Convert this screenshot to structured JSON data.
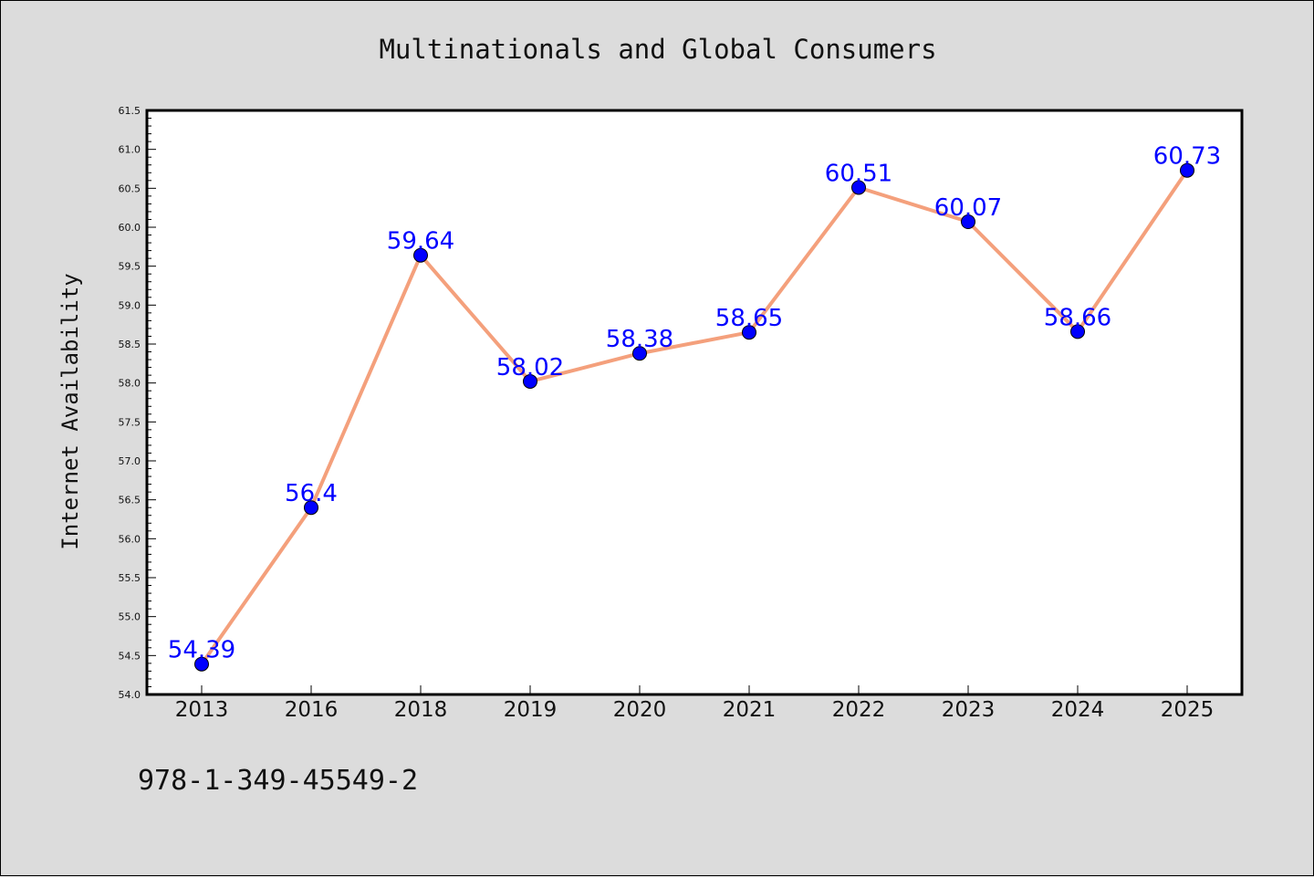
{
  "chart_data": {
    "type": "line",
    "title": "Multinationals and Global Consumers",
    "xlabel": "",
    "ylabel": "Internet Availability",
    "categories": [
      "2013",
      "2016",
      "2018",
      "2019",
      "2020",
      "2021",
      "2022",
      "2023",
      "2024",
      "2025"
    ],
    "series": [
      {
        "values": [
          54.39,
          56.4,
          59.64,
          58.02,
          58.38,
          58.65,
          60.51,
          60.07,
          58.66,
          60.73
        ],
        "data_labels": [
          "54.39",
          "56.4",
          "59.64",
          "58.02",
          "58.38",
          "58.65",
          "60.51",
          "60.07",
          "58.66",
          "60.73"
        ],
        "line_color": "#f4a07c",
        "marker_color": "#0000ff"
      }
    ],
    "ylim": [
      54.0,
      61.5
    ],
    "yticks": [
      "54.0",
      "54.5",
      "55.0",
      "55.5",
      "56.0",
      "56.5",
      "57.0",
      "57.5",
      "58.0",
      "58.5",
      "59.0",
      "59.5",
      "60.0",
      "60.5",
      "61.0",
      "61.5"
    ],
    "grid": false,
    "legend": "none"
  },
  "footnote": "978-1-349-45549-2"
}
